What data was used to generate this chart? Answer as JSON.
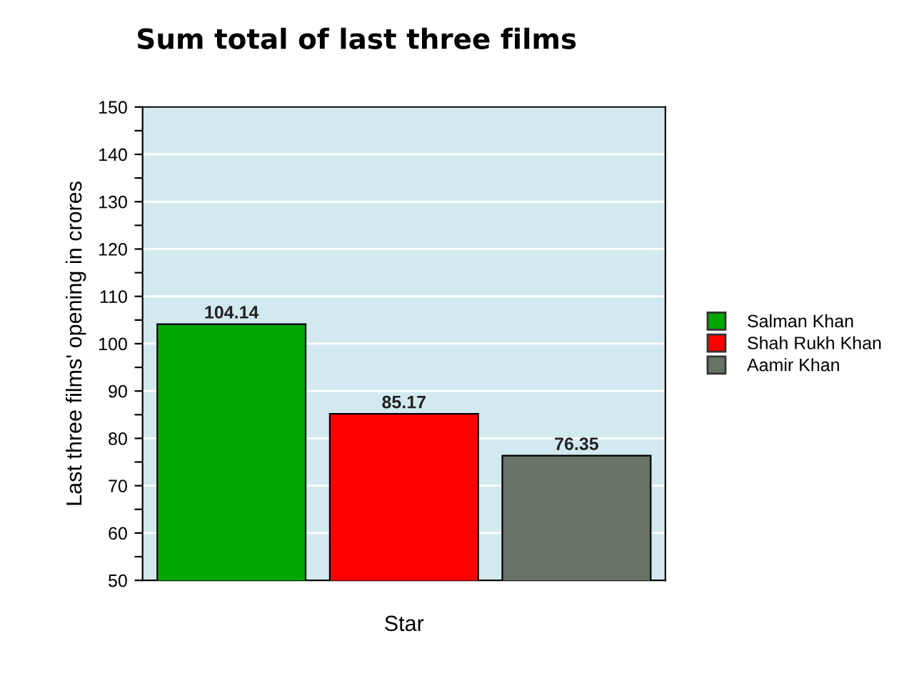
{
  "chart_data": {
    "type": "bar",
    "title": "Sum total of last three films",
    "xlabel": "Star",
    "ylabel": "Last three films' opening in crores",
    "categories": [
      null
    ],
    "series": [
      {
        "name": "Salman Khan",
        "color": "#00a800",
        "values": [
          104.14
        ]
      },
      {
        "name": "Shah Rukh Khan",
        "color": "#ff0000",
        "values": [
          85.17
        ]
      },
      {
        "name": "Aamir Khan",
        "color": "#667366",
        "values": [
          76.35
        ]
      }
    ],
    "ylim": [
      50,
      150
    ],
    "yticks": [
      50,
      {
        "value": 55,
        "label": null
      },
      60,
      {
        "value": 65,
        "label": null
      },
      70,
      {
        "value": 75,
        "label": null
      },
      80,
      {
        "value": 85,
        "label": null
      },
      90,
      {
        "value": 95,
        "label": null
      },
      100,
      {
        "value": 105,
        "label": null
      },
      110,
      {
        "value": 115,
        "label": null
      },
      120,
      {
        "value": 125,
        "label": null
      },
      130,
      {
        "value": 135,
        "label": null
      },
      140,
      {
        "value": 145,
        "label": null
      },
      150
    ],
    "grid": "y",
    "legend": "right",
    "data_labels": true
  }
}
